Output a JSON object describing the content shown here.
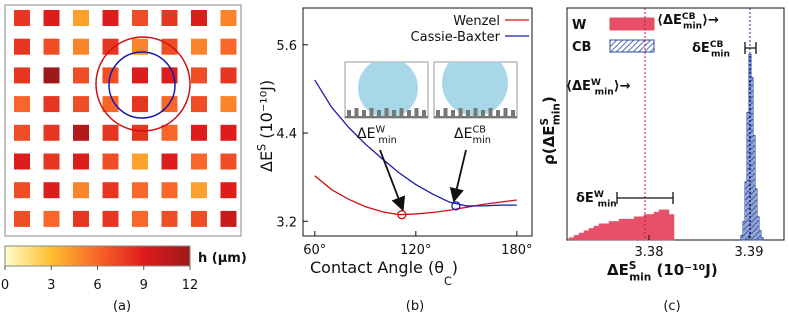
{
  "chart_data": [
    {
      "type": "heatmap",
      "caption": "(a)",
      "z": [
        [
          8,
          9,
          4,
          9,
          7,
          8,
          9,
          5
        ],
        [
          8,
          7,
          5,
          8,
          5,
          7,
          5,
          6
        ],
        [
          8,
          12,
          7,
          7,
          9,
          9,
          7,
          8
        ],
        [
          6,
          8,
          7,
          6,
          8,
          6,
          7,
          5
        ],
        [
          7,
          8,
          11,
          8,
          8,
          6,
          9,
          9
        ],
        [
          9,
          8,
          9,
          7,
          4,
          9,
          6,
          7
        ],
        [
          7,
          9,
          5,
          8,
          6,
          6,
          4,
          9
        ],
        [
          7,
          6,
          8,
          8,
          6,
          7,
          7,
          10
        ]
      ],
      "zlim": [
        0,
        12
      ],
      "zticks": [
        0,
        3,
        6,
        9,
        12
      ],
      "zlabel": "h (μm)",
      "colorscale": [
        "#ffffcc",
        "#fdbf2d",
        "#f8662a",
        "#dd1c1c",
        "#9e1a1a"
      ]
    },
    {
      "type": "line",
      "caption": "(b)",
      "xlabel": {
        "base": "Contact Angle (θ",
        "sub": "C",
        "suffix": ")"
      },
      "ylabel": {
        "base": "ΔE",
        "sup": "S",
        "suffix": " (10⁻¹⁰J)"
      },
      "x": [
        60,
        70,
        80,
        90,
        100,
        110,
        120,
        130,
        140,
        150,
        160,
        170,
        180
      ],
      "series": [
        {
          "name": "Wenzel",
          "color": "#d01010",
          "values": [
            3.82,
            3.63,
            3.5,
            3.4,
            3.33,
            3.29,
            3.3,
            3.32,
            3.35,
            3.39,
            3.43,
            3.46,
            3.49
          ]
        },
        {
          "name": "Cassie-Baxter",
          "color": "#1a1aa8",
          "values": [
            5.12,
            4.75,
            4.48,
            4.25,
            4.05,
            3.86,
            3.7,
            3.57,
            3.46,
            3.41,
            3.41,
            3.42,
            3.42
          ]
        }
      ],
      "points": [
        {
          "x": 111.7,
          "y": 3.29,
          "color": "#d01010"
        },
        {
          "x": 143.8,
          "y": 3.41,
          "color": "#1a1aa8"
        }
      ],
      "annotations": [
        {
          "base": "ΔE",
          "sup": "W",
          "sub": "min"
        },
        {
          "base": "ΔE",
          "sup": "CB",
          "sub": "min"
        }
      ],
      "xlim": [
        53,
        189
      ],
      "xticks": [
        {
          "value": 60,
          "label": "60°"
        },
        {
          "value": 120,
          "label": "120°"
        },
        {
          "value": 180,
          "label": "180°"
        }
      ],
      "ylim": [
        3.0,
        6.1
      ],
      "yticks": [
        3.2,
        4.4,
        5.6
      ]
    },
    {
      "type": "histogram",
      "caption": "(c)",
      "xlabel": {
        "base": "ΔE",
        "sup": "S",
        "sub": "min",
        "suffix": " (10⁻¹⁰J)"
      },
      "ylabel": {
        "base": "ρ(ΔE",
        "sup": "S",
        "sub": "min",
        "suffix": ")"
      },
      "series": [
        {
          "name": "W",
          "color": "#e8506a",
          "bins": [
            3.372,
            3.3725,
            3.373,
            3.3735,
            3.374,
            3.3745,
            3.375,
            3.3755,
            3.376,
            3.3765,
            3.377,
            3.3775,
            3.378,
            3.3785,
            3.379,
            3.3795,
            3.38,
            3.3805,
            3.381,
            3.3815,
            3.382,
            3.3825
          ],
          "values": [
            1,
            2,
            3,
            4,
            5,
            6,
            7,
            7,
            8,
            8,
            9,
            9,
            9,
            10,
            10,
            11,
            11,
            12,
            13,
            13,
            11
          ]
        },
        {
          "name": "CB",
          "color": "#2a4aa0",
          "hatch": true,
          "bins": [
            3.3892,
            3.3894,
            3.3896,
            3.3898,
            3.39,
            3.3902,
            3.3904,
            3.3906,
            3.3908,
            3.391,
            3.3912,
            3.3914
          ],
          "values": [
            2,
            8,
            25,
            55,
            80,
            70,
            45,
            22,
            10,
            4,
            1
          ]
        }
      ],
      "vlines": [
        {
          "x": 3.3796,
          "color": "#c0104a"
        },
        {
          "x": 3.3901,
          "color": "#2a2a90"
        }
      ],
      "intervals": [
        {
          "x0": 3.3896,
          "x1": 3.3907
        },
        {
          "x0": 3.3768,
          "x1": 3.3824
        }
      ],
      "annotations": [
        {
          "base": "⟨ΔE",
          "sup": "CB",
          "sub": "min",
          "suffix": "⟩→"
        },
        {
          "base": "⟨ΔE",
          "sup": "W",
          "sub": "min",
          "suffix": "⟩→"
        },
        {
          "base": "δE",
          "sup": "CB",
          "sub": "min"
        },
        {
          "base": "δE",
          "sup": "W",
          "sub": "min"
        }
      ],
      "xlim": [
        3.3718,
        3.3935
      ],
      "xticks": [
        3.38,
        3.39
      ],
      "ylim": [
        0,
        100
      ]
    }
  ]
}
